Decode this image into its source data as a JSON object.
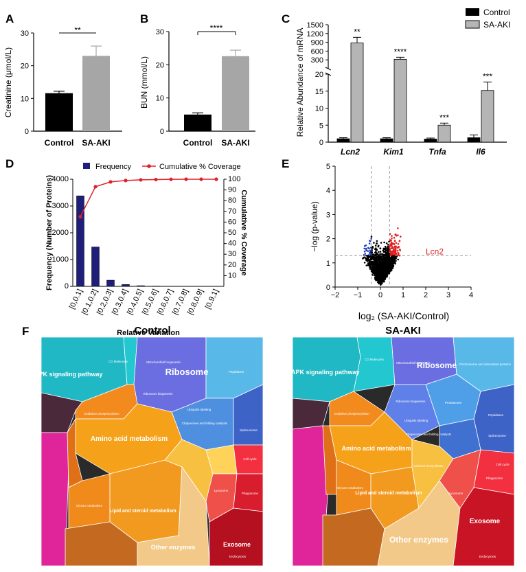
{
  "panel_letters": [
    "A",
    "B",
    "C",
    "D",
    "E",
    "F"
  ],
  "chart_data": [
    {
      "id": "A",
      "type": "bar",
      "categories": [
        "Control",
        "SA-AKI"
      ],
      "values": [
        11.6,
        23.0
      ],
      "errors": [
        0.6,
        3.0
      ],
      "colors": [
        "#000000",
        "#a6a6a6"
      ],
      "ylabel": "Creatinine (μmol/L)",
      "ylim": [
        0,
        30
      ],
      "yticks": [
        "0",
        "10",
        "20",
        "30"
      ],
      "significance": "**"
    },
    {
      "id": "B",
      "type": "bar",
      "categories": [
        "Control",
        "SA-AKI"
      ],
      "values": [
        5.0,
        22.6
      ],
      "errors": [
        0.5,
        1.8
      ],
      "colors": [
        "#000000",
        "#a6a6a6"
      ],
      "ylabel": "BUN (mmol/L)",
      "ylim": [
        0,
        30
      ],
      "yticks": [
        "0",
        "10",
        "20",
        "30"
      ],
      "significance": "****"
    },
    {
      "id": "C",
      "type": "bar",
      "categories": [
        "Lcn2",
        "Kim1",
        "Tnfa",
        "Il6"
      ],
      "series": [
        {
          "name": "Control",
          "color": "#000000",
          "values": [
            1.0,
            1.0,
            0.9,
            1.3
          ],
          "errors": [
            0.3,
            0.3,
            0.3,
            0.8
          ]
        },
        {
          "name": "SA-AKI",
          "color": "#b5b5b5",
          "values": [
            880,
            320,
            5.0,
            15.2
          ],
          "errors": [
            190,
            70,
            0.6,
            2.5
          ]
        }
      ],
      "significance": [
        "**",
        "****",
        "***",
        "***"
      ],
      "ylabel": "Relative Abundance of mRNA",
      "axis_break": true,
      "upper_yticks": [
        "1500",
        "1200",
        "900",
        "600",
        "300"
      ],
      "lower_yticks": [
        "20",
        "15",
        "10",
        "5",
        "0"
      ]
    },
    {
      "id": "D",
      "type": "bar",
      "categories": [
        "[0,0.1]",
        "[0.1,0.2]",
        "[0.2,0.3]",
        "[0.3,0.4]",
        "[0.4,0.5]",
        "[0.5,0.6]",
        "[0.6,0.7]",
        "[0.7,0.8]",
        "[0.8,0.9]",
        "[0.9,1]"
      ],
      "series": [
        {
          "name": "Frequency",
          "color": "#1f1f7a",
          "values": [
            3380,
            1470,
            230,
            70,
            25,
            10,
            5,
            3,
            2,
            1
          ]
        },
        {
          "name": "Cumulative % Coverage",
          "color": "#e0202a",
          "type": "line",
          "values": [
            65,
            93,
            97.5,
            98.8,
            99.4,
            99.7,
            99.9,
            100,
            100,
            100
          ]
        }
      ],
      "xlabel": "Relative Variation",
      "ylabel": "Frequency (Number of Proteins)",
      "y2label": "Cumulative % Coverage",
      "ylim": [
        0,
        4000
      ],
      "y2lim": [
        0,
        100
      ],
      "yticks": [
        "0",
        "1000",
        "2000",
        "3000",
        "4000"
      ],
      "y2ticks": [
        "10",
        "20",
        "30",
        "40",
        "50",
        "60",
        "70",
        "80",
        "90",
        "100"
      ]
    },
    {
      "id": "E",
      "type": "scatter",
      "xlabel": "log₂ (SA-AKI/Control)",
      "ylabel": "−log (p-value)",
      "xlim": [
        -2,
        4
      ],
      "ylim": [
        0,
        5
      ],
      "xticks": [
        "−2",
        "−1",
        "0",
        "1",
        "2",
        "3",
        "4"
      ],
      "yticks": [
        "0",
        "1",
        "2",
        "3",
        "4",
        "5"
      ],
      "thresholds": {
        "fc": [
          -0.4,
          0.4
        ],
        "p": 1.3
      },
      "annotation": "Lcn2",
      "series": [
        {
          "name": "down",
          "color": "#1f3fbf"
        },
        {
          "name": "unchanged",
          "color": "#000000"
        },
        {
          "name": "up",
          "color": "#e02020"
        }
      ]
    }
  ],
  "voronoi": {
    "titles": [
      "Control",
      "SA-AKI"
    ],
    "control_labels": [
      "MAPK signaling pathway",
      "CD Molecules",
      "Mitochondrial biogenesis",
      "Ribosome",
      "Oxidative phosphorylation",
      "Amino acid metabolism",
      "Glycan metabolism",
      "Lipid and steroid metabolism",
      "Other enzymes",
      "Exosome",
      "Phagosome",
      "Cell cycle",
      "Lysosome",
      "Chaperones and folding catalysts",
      "Spliceosome",
      "Peptidases",
      "Ubiquitin labeling",
      "Ribosome biogenesis",
      "Endocytosis"
    ],
    "saaki_labels": [
      "MAPK signaling pathway",
      "CD Molecules",
      "Mitochondrial biogenesis",
      "Ribosome",
      "Ribosome biogenesis",
      "Proteasome",
      "Peptidases",
      "Chromosome and associated proteins",
      "Ubiquitin labeling",
      "Chaperones and folding catalysts",
      "Spliceosome",
      "Amino acid metabolism",
      "Lipid and steroid metabolism",
      "Glycan metabolism",
      "Cofactor biosynthesis",
      "Other enzymes",
      "Exosome",
      "Phagosome",
      "Cell cycle",
      "Lysosome",
      "Endocytosis",
      "Oxidative phosphorylation"
    ]
  }
}
